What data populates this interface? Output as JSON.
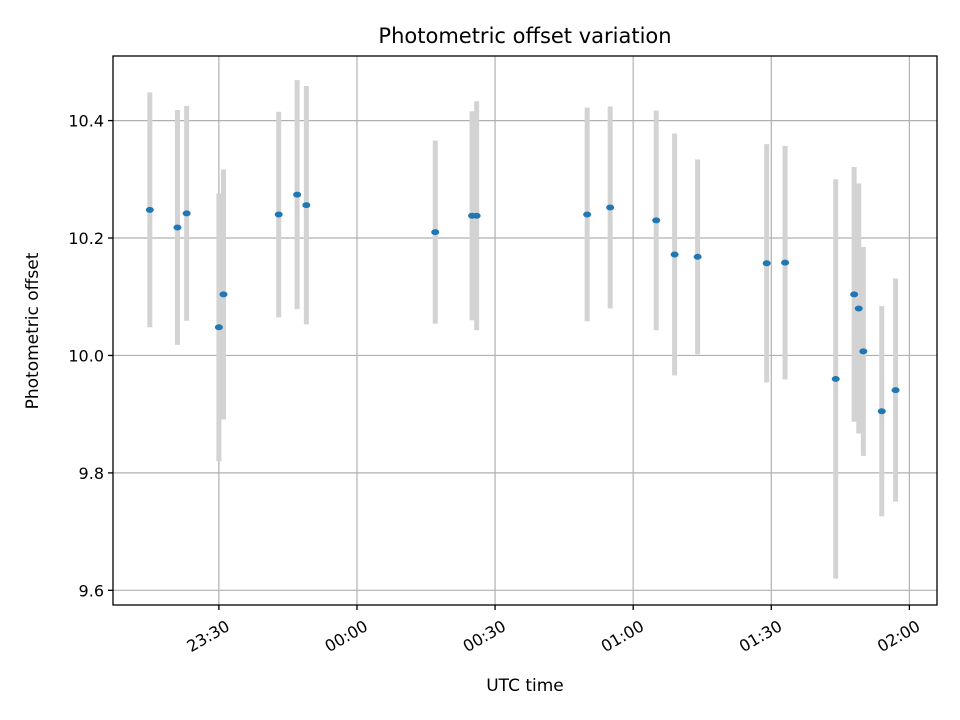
{
  "chart_data": {
    "type": "scatter",
    "title": "Photometric offset variation",
    "xlabel": "UTC time",
    "ylabel": "Photometric offset",
    "x_ticks": [
      "23:30",
      "00:00",
      "00:30",
      "01:00",
      "01:30",
      "02:00"
    ],
    "y_ticks": [
      "9.6",
      "9.8",
      "10.0",
      "10.2",
      "10.4"
    ],
    "xlim": [
      "23:07",
      "02:06"
    ],
    "ylim": [
      9.575,
      10.51
    ],
    "grid": true,
    "marker_color": "#1f77b4",
    "errorbar_color": "#d3d3d3",
    "points": [
      {
        "time": "23:15",
        "value": 10.248,
        "err": 0.2
      },
      {
        "time": "23:21",
        "value": 10.218,
        "err": 0.2
      },
      {
        "time": "23:23",
        "value": 10.242,
        "err": 0.183
      },
      {
        "time": "23:30",
        "value": 10.048,
        "err": 0.228
      },
      {
        "time": "23:31",
        "value": 10.104,
        "err": 0.213
      },
      {
        "time": "23:43",
        "value": 10.24,
        "err": 0.175
      },
      {
        "time": "23:47",
        "value": 10.274,
        "err": 0.195
      },
      {
        "time": "23:49",
        "value": 10.256,
        "err": 0.203
      },
      {
        "time": "00:17",
        "value": 10.21,
        "err": 0.156
      },
      {
        "time": "00:25",
        "value": 10.238,
        "err": 0.178
      },
      {
        "time": "00:26",
        "value": 10.238,
        "err": 0.195
      },
      {
        "time": "00:50",
        "value": 10.24,
        "err": 0.182
      },
      {
        "time": "00:55",
        "value": 10.252,
        "err": 0.172
      },
      {
        "time": "01:05",
        "value": 10.23,
        "err": 0.187
      },
      {
        "time": "01:09",
        "value": 10.172,
        "err": 0.206
      },
      {
        "time": "01:14",
        "value": 10.168,
        "err": 0.166
      },
      {
        "time": "01:29",
        "value": 10.157,
        "err": 0.203
      },
      {
        "time": "01:33",
        "value": 10.158,
        "err": 0.199
      },
      {
        "time": "01:44",
        "value": 9.96,
        "err": 0.34
      },
      {
        "time": "01:48",
        "value": 10.104,
        "err": 0.217
      },
      {
        "time": "01:49",
        "value": 10.08,
        "err": 0.213
      },
      {
        "time": "01:50",
        "value": 10.007,
        "err": 0.178
      },
      {
        "time": "01:54",
        "value": 9.905,
        "err": 0.179
      },
      {
        "time": "01:57",
        "value": 9.941,
        "err": 0.19
      }
    ]
  }
}
